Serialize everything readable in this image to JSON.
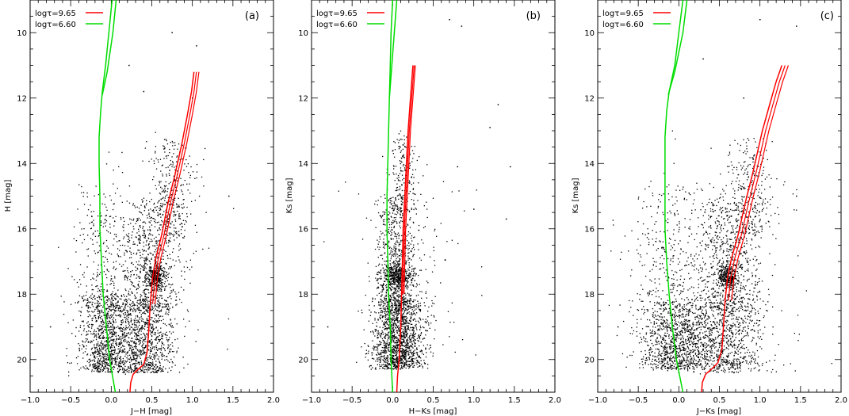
{
  "figure": {
    "layout": "three side-by-side panels"
  },
  "legend": {
    "placement": "top-left",
    "entries": [
      {
        "label": "logτ=9.65",
        "color": "#ff0000"
      },
      {
        "label": "logτ=6.60",
        "color": "#00dd00"
      }
    ]
  },
  "chart_data": [
    {
      "type": "scatter",
      "panel_label": "(a)",
      "xlabel": "J−H [mag]",
      "ylabel": "H [mag]",
      "xlim": [
        -1.0,
        2.0
      ],
      "ylim": [
        21,
        9
      ],
      "y_inverted": true,
      "xticks": [
        -1.0,
        -0.5,
        0.0,
        0.5,
        1.0,
        1.5,
        2.0
      ],
      "xtick_labels": [
        "−1.0",
        "−0.5",
        "0.0",
        "0.5",
        "1.0",
        "1.5",
        "2.0"
      ],
      "yticks": [
        10,
        12,
        14,
        16,
        18,
        20
      ],
      "ytick_labels": [
        "10",
        "12",
        "14",
        "16",
        "18",
        "20"
      ],
      "scatter": {
        "approx_count": 3500,
        "components": [
          {
            "name": "",
            "n": 950,
            "x_mean": -0.05,
            "x_sd": 0.17,
            "y_min": 18.0,
            "y_max": 20.4
          },
          {
            "name": "",
            "n": 850,
            "x_mean": 0.42,
            "x_sd": 0.2,
            "y_min": 18.0,
            "y_max": 20.4
          },
          {
            "name": "",
            "n": 300,
            "x_mean": 0.55,
            "x_sd": 0.05,
            "y_mean": 17.45,
            "y_sd": 0.17
          },
          {
            "name": "",
            "n": 650,
            "x_mean": 0.5,
            "x_sd": 0.17,
            "y_min": 15.0,
            "y_max": 18.5
          },
          {
            "name": "",
            "n": 280,
            "x_mean": 0.75,
            "x_sd": 0.13,
            "y_min": 13.2,
            "y_max": 16.2
          },
          {
            "name": "",
            "n": 320,
            "x_mean": -0.08,
            "x_sd": 0.22,
            "y_min": 14.5,
            "y_max": 18.5
          },
          {
            "name": "",
            "n": 120,
            "x_mean": 0.4,
            "x_sd": 0.45,
            "y_min": 13.0,
            "y_max": 20.5
          }
        ],
        "outliers": [
          [
            0.75,
            10.0
          ],
          [
            1.05,
            10.4
          ],
          [
            0.22,
            11.0
          ],
          [
            0.4,
            11.8
          ],
          [
            1.45,
            15.0
          ],
          [
            -0.75,
            19.0
          ],
          [
            1.0,
            12.0
          ]
        ]
      },
      "isochrone_old": {
        "label": "logτ=9.65",
        "color": "#ff0000",
        "points": [
          [
            0.23,
            21.0
          ],
          [
            0.24,
            20.7
          ],
          [
            0.27,
            20.45
          ],
          [
            0.33,
            20.3
          ],
          [
            0.4,
            20.15
          ],
          [
            0.44,
            19.8
          ],
          [
            0.46,
            19.2
          ],
          [
            0.48,
            18.3
          ],
          [
            0.51,
            17.5
          ],
          [
            0.55,
            16.9
          ],
          [
            0.62,
            16.2
          ],
          [
            0.7,
            15.2
          ],
          [
            0.78,
            14.4
          ],
          [
            0.87,
            13.4
          ],
          [
            0.94,
            12.5
          ],
          [
            0.99,
            11.8
          ],
          [
            1.02,
            11.2
          ]
        ],
        "offset_branches": [
          0.03,
          0.06
        ]
      },
      "isochrone_young": {
        "label": "logτ=6.60",
        "color": "#00dd00",
        "points": [
          [
            0.05,
            21.0
          ],
          [
            -0.02,
            20.0
          ],
          [
            -0.06,
            19.0
          ],
          [
            -0.1,
            18.0
          ],
          [
            -0.12,
            17.0
          ],
          [
            -0.14,
            16.0
          ],
          [
            -0.14,
            15.0
          ],
          [
            -0.15,
            14.0
          ],
          [
            -0.15,
            13.2
          ],
          [
            -0.13,
            12.4
          ],
          [
            -0.11,
            11.8
          ],
          [
            -0.07,
            11.0
          ],
          [
            -0.03,
            10.0
          ],
          [
            0.01,
            9.0
          ]
        ],
        "branch": [
          [
            -0.11,
            11.9
          ],
          [
            -0.05,
            11.2
          ],
          [
            0.02,
            10.0
          ],
          [
            0.06,
            9.0
          ]
        ]
      }
    },
    {
      "type": "scatter",
      "panel_label": "(b)",
      "xlabel": "H−Ks [mag]",
      "ylabel": "Ks [mag]",
      "xlim": [
        -1.0,
        2.0
      ],
      "ylim": [
        21,
        9
      ],
      "y_inverted": true,
      "xticks": [
        -1.0,
        -0.5,
        0.0,
        0.5,
        1.0,
        1.5,
        2.0
      ],
      "xtick_labels": [
        "−1.0",
        "−0.5",
        "0.0",
        "0.5",
        "1.0",
        "1.5",
        "2.0"
      ],
      "yticks": [
        10,
        12,
        14,
        16,
        18,
        20
      ],
      "ytick_labels": [
        "10",
        "12",
        "14",
        "16",
        "18",
        "20"
      ],
      "scatter": {
        "approx_count": 3500,
        "components": [
          {
            "name": "",
            "n": 1400,
            "x_mean": 0.07,
            "x_sd": 0.16,
            "y_min": 18.0,
            "y_max": 20.3
          },
          {
            "name": "",
            "n": 380,
            "x_mean": 0.05,
            "x_sd": 0.1,
            "y_mean": 17.45,
            "y_sd": 0.17
          },
          {
            "name": "",
            "n": 700,
            "x_mean": 0.05,
            "x_sd": 0.12,
            "y_min": 15.0,
            "y_max": 18.5
          },
          {
            "name": "",
            "n": 200,
            "x_mean": 0.12,
            "x_sd": 0.08,
            "y_min": 13.0,
            "y_max": 15.5
          },
          {
            "name": "",
            "n": 150,
            "x_mean": 0.2,
            "x_sd": 0.35,
            "y_min": 14.0,
            "y_max": 20.0
          }
        ],
        "outliers": [
          [
            0.7,
            9.6
          ],
          [
            0.85,
            9.8
          ],
          [
            1.3,
            12.2
          ],
          [
            1.2,
            12.9
          ],
          [
            0.8,
            14.1
          ],
          [
            1.45,
            14.1
          ],
          [
            1.0,
            15.4
          ],
          [
            1.4,
            15.7
          ],
          [
            -0.8,
            19.0
          ]
        ]
      },
      "isochrone_old": {
        "label": "logτ=9.65",
        "color": "#ff0000",
        "points": [
          [
            0.05,
            21.0
          ],
          [
            0.06,
            20.5
          ],
          [
            0.08,
            20.0
          ],
          [
            0.1,
            19.0
          ],
          [
            0.11,
            18.0
          ],
          [
            0.12,
            17.0
          ],
          [
            0.13,
            16.0
          ],
          [
            0.15,
            15.0
          ],
          [
            0.17,
            14.0
          ],
          [
            0.19,
            13.0
          ],
          [
            0.22,
            12.0
          ],
          [
            0.25,
            11.0
          ]
        ],
        "offset_branches": [
          0.015,
          0.03
        ]
      },
      "isochrone_young": {
        "label": "logτ=6.60",
        "color": "#00dd00",
        "points": [
          [
            0.0,
            21.0
          ],
          [
            -0.02,
            20.0
          ],
          [
            -0.03,
            19.0
          ],
          [
            -0.05,
            18.0
          ],
          [
            -0.06,
            17.0
          ],
          [
            -0.07,
            16.0
          ],
          [
            -0.07,
            15.0
          ],
          [
            -0.06,
            14.0
          ],
          [
            -0.05,
            13.0
          ],
          [
            -0.04,
            12.0
          ],
          [
            -0.03,
            11.0
          ],
          [
            -0.02,
            10.0
          ],
          [
            0.0,
            9.0
          ]
        ],
        "branch": [
          [
            -0.04,
            12.0
          ],
          [
            -0.01,
            11.0
          ],
          [
            0.02,
            10.0
          ],
          [
            0.05,
            9.0
          ]
        ]
      }
    },
    {
      "type": "scatter",
      "panel_label": "(c)",
      "xlabel": "J−Ks [mag]",
      "ylabel": "Ks [mag]",
      "xlim": [
        -1.0,
        2.0
      ],
      "ylim": [
        21,
        9
      ],
      "y_inverted": true,
      "xticks": [
        -1.0,
        -0.5,
        0.0,
        0.5,
        1.0,
        1.5,
        2.0
      ],
      "xtick_labels": [
        "−1.0",
        "−0.5",
        "0.0",
        "0.5",
        "1.0",
        "1.5",
        "2.0"
      ],
      "yticks": [
        10,
        12,
        14,
        16,
        18,
        20
      ],
      "ytick_labels": [
        "10",
        "12",
        "14",
        "16",
        "18",
        "20"
      ],
      "scatter": {
        "approx_count": 3500,
        "components": [
          {
            "name": "",
            "n": 950,
            "x_mean": -0.05,
            "x_sd": 0.22,
            "y_min": 18.2,
            "y_max": 20.3
          },
          {
            "name": "",
            "n": 850,
            "x_mean": 0.55,
            "x_sd": 0.25,
            "y_min": 18.0,
            "y_max": 20.4
          },
          {
            "name": "",
            "n": 300,
            "x_mean": 0.6,
            "x_sd": 0.06,
            "y_mean": 17.45,
            "y_sd": 0.17
          },
          {
            "name": "",
            "n": 650,
            "x_mean": 0.6,
            "x_sd": 0.2,
            "y_min": 15.0,
            "y_max": 18.5
          },
          {
            "name": "",
            "n": 280,
            "x_mean": 0.85,
            "x_sd": 0.15,
            "y_min": 13.2,
            "y_max": 16.2
          },
          {
            "name": "",
            "n": 320,
            "x_mean": -0.12,
            "x_sd": 0.25,
            "y_min": 14.5,
            "y_max": 18.5
          },
          {
            "name": "",
            "n": 120,
            "x_mean": 0.5,
            "x_sd": 0.5,
            "y_min": 13.0,
            "y_max": 20.5
          }
        ],
        "outliers": [
          [
            0.3,
            10.8
          ],
          [
            1.0,
            9.6
          ],
          [
            1.45,
            9.8
          ],
          [
            1.45,
            15.0
          ],
          [
            -0.75,
            19.0
          ],
          [
            0.8,
            12.0
          ]
        ]
      },
      "isochrone_old": {
        "label": "logτ=9.65",
        "color": "#ff0000",
        "points": [
          [
            0.28,
            21.0
          ],
          [
            0.29,
            20.7
          ],
          [
            0.33,
            20.45
          ],
          [
            0.4,
            20.3
          ],
          [
            0.48,
            20.1
          ],
          [
            0.53,
            19.7
          ],
          [
            0.55,
            19.0
          ],
          [
            0.57,
            18.2
          ],
          [
            0.6,
            17.5
          ],
          [
            0.65,
            16.9
          ],
          [
            0.73,
            16.2
          ],
          [
            0.82,
            15.2
          ],
          [
            0.92,
            14.2
          ],
          [
            1.03,
            13.0
          ],
          [
            1.12,
            12.2
          ],
          [
            1.2,
            11.5
          ],
          [
            1.27,
            11.0
          ]
        ],
        "offset_branches": [
          0.04,
          0.08
        ]
      },
      "isochrone_young": {
        "label": "logτ=6.60",
        "color": "#00dd00",
        "points": [
          [
            0.05,
            21.0
          ],
          [
            -0.03,
            20.0
          ],
          [
            -0.08,
            19.0
          ],
          [
            -0.12,
            18.0
          ],
          [
            -0.15,
            17.0
          ],
          [
            -0.17,
            16.0
          ],
          [
            -0.17,
            15.0
          ],
          [
            -0.17,
            14.0
          ],
          [
            -0.17,
            13.2
          ],
          [
            -0.15,
            12.4
          ],
          [
            -0.12,
            11.8
          ],
          [
            -0.05,
            11.0
          ],
          [
            0.0,
            10.0
          ],
          [
            0.05,
            9.0
          ]
        ],
        "branch": [
          [
            -0.13,
            11.9
          ],
          [
            -0.05,
            11.2
          ],
          [
            0.05,
            10.0
          ],
          [
            0.1,
            9.0
          ]
        ]
      }
    }
  ]
}
